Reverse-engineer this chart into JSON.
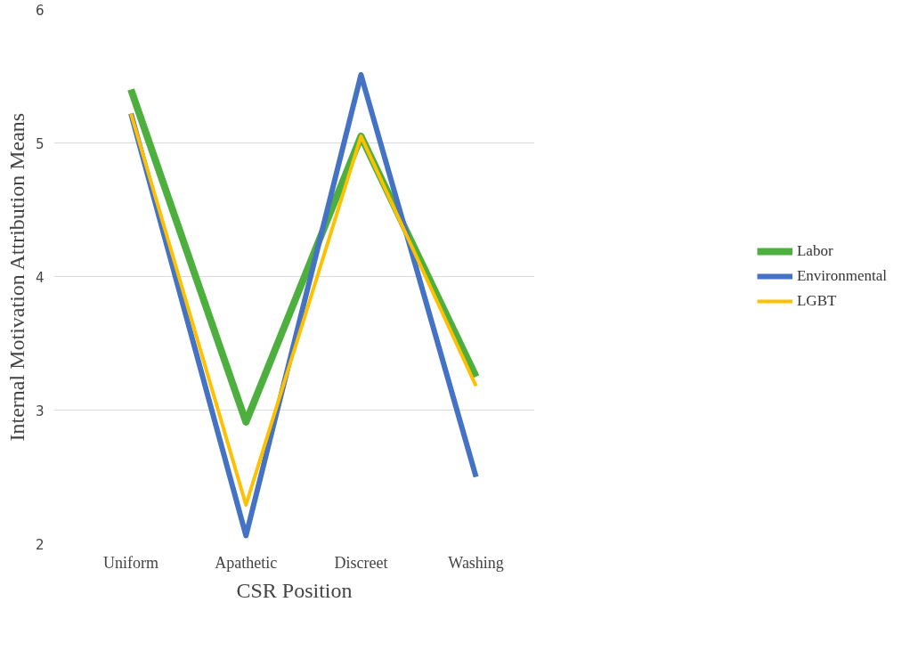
{
  "chart_data": {
    "type": "line",
    "xlabel": "CSR Position",
    "ylabel": "Internal Motivation Attribution Means",
    "categories": [
      "Uniform",
      "Apathetic",
      "Discreet",
      "Washing"
    ],
    "series": [
      {
        "name": "Labor",
        "color": "#4caf3e",
        "values": [
          5.4,
          2.91,
          5.05,
          3.25
        ]
      },
      {
        "name": "Environmental",
        "color": "#4472c4",
        "values": [
          5.22,
          2.06,
          5.51,
          2.5
        ]
      },
      {
        "name": "LGBT",
        "color": "#ffc000",
        "values": [
          5.22,
          2.29,
          5.05,
          3.18
        ]
      }
    ],
    "ylim": [
      2,
      6
    ],
    "yticks": [
      2,
      3,
      4,
      5,
      6
    ],
    "grid": "y",
    "legend": "right",
    "marker": "none",
    "line_style": "solid"
  }
}
